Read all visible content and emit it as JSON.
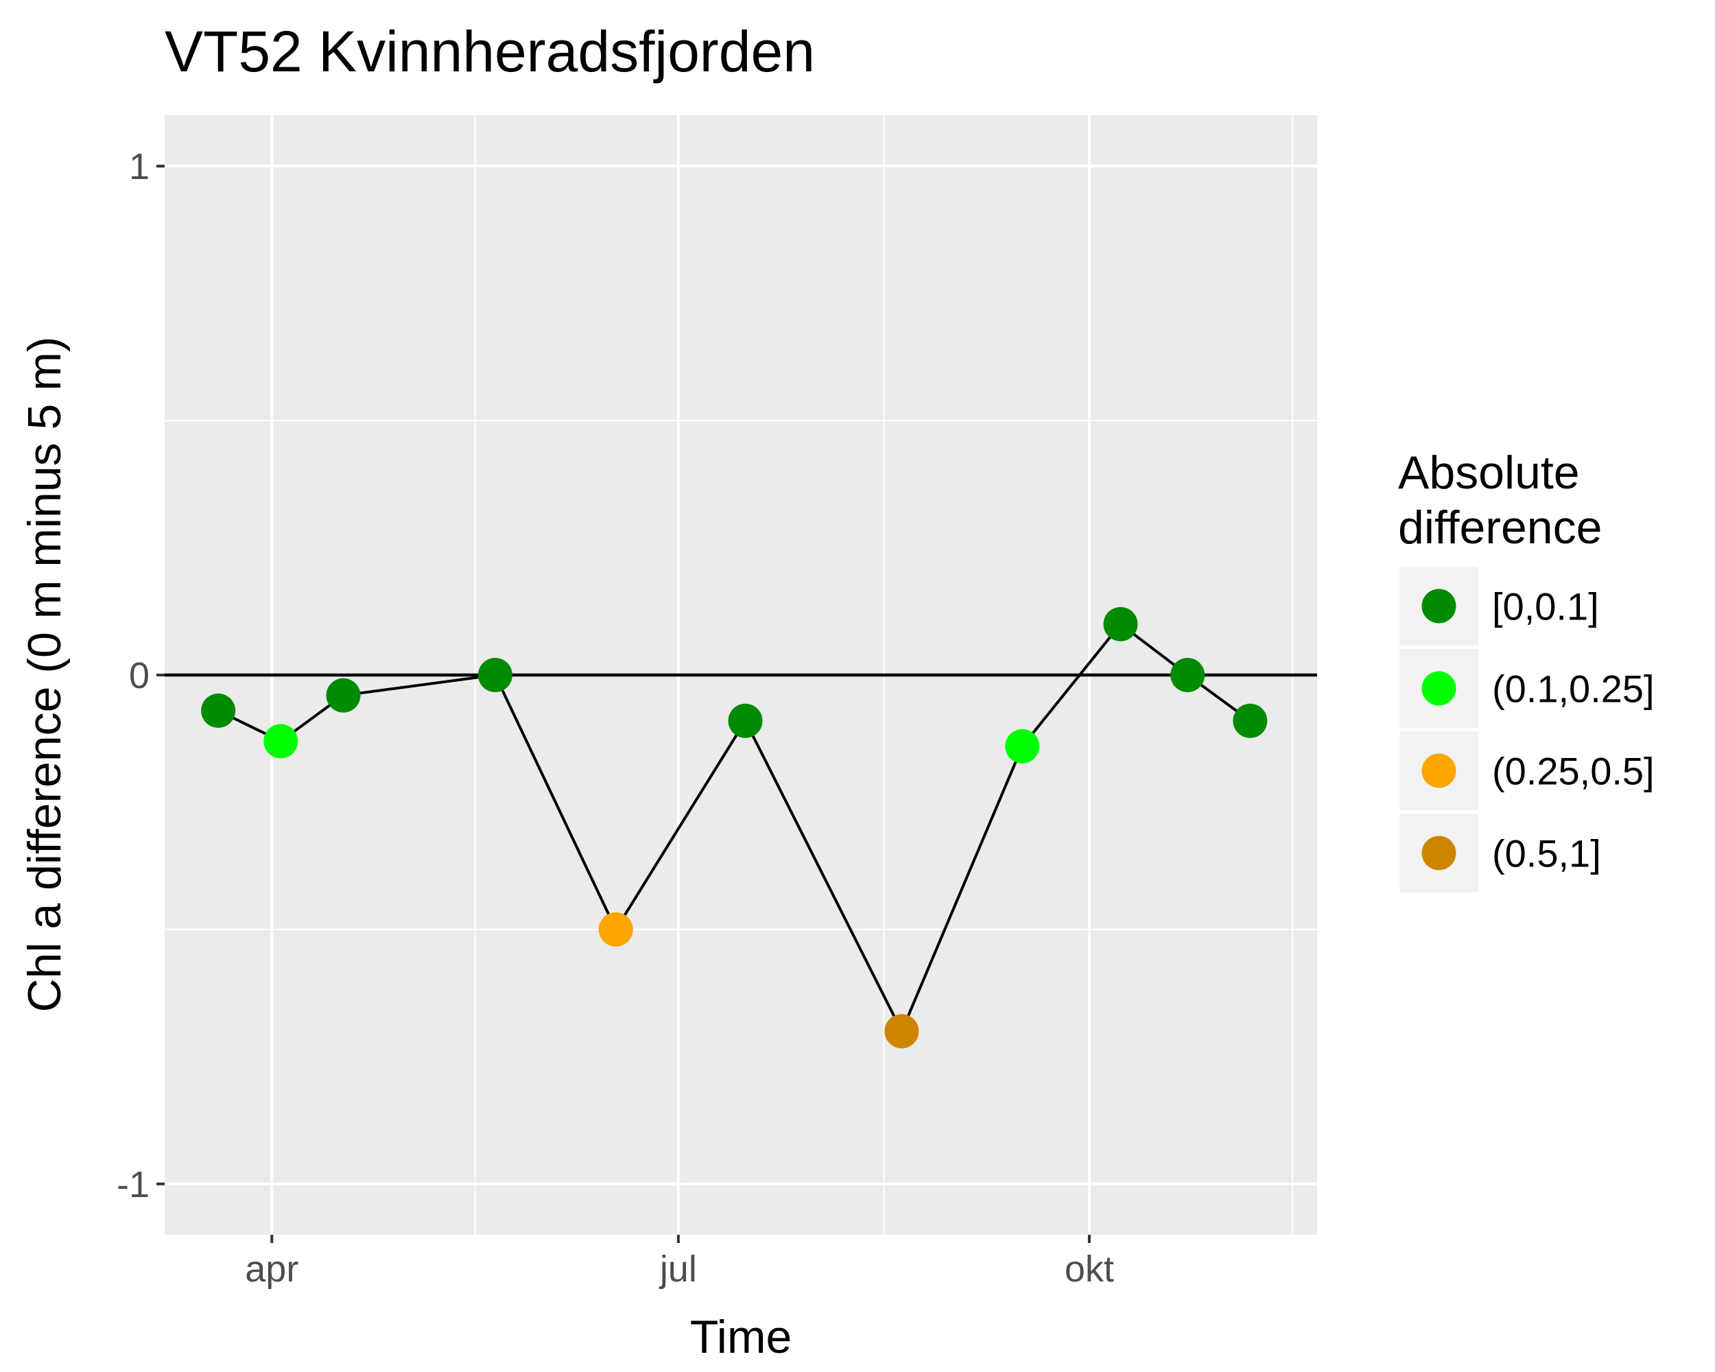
{
  "chart_data": {
    "type": "line",
    "title": "VT52 Kvinnheradsfjorden",
    "xlabel": "Time",
    "ylabel": "Chl a difference (0 m minus 5 m)",
    "ylim": [
      -1.1,
      1.1
    ],
    "y_ticks": [
      -1,
      0,
      1
    ],
    "y_tick_labels": [
      "-1",
      "0",
      "1"
    ],
    "x_ticks": [
      "2017-04-01",
      "2017-07-01",
      "2017-10-01"
    ],
    "x_tick_labels": [
      "apr",
      "jul",
      "okt"
    ],
    "xlim": [
      "2017-03-08",
      "2017-11-21"
    ],
    "grid": true,
    "reference_line_y": 0,
    "legend": {
      "title": [
        "Absolute",
        "difference"
      ],
      "position": "right",
      "entries": [
        {
          "label": "[0,0.1]",
          "color": "#008b00"
        },
        {
          "label": "(0.1,0.25]",
          "color": "#00ff00"
        },
        {
          "label": "(0.25,0.5]",
          "color": "#ffa500"
        },
        {
          "label": "(0.5,1]",
          "color": "#cd8500"
        }
      ]
    },
    "points": [
      {
        "x": "2017-03-20",
        "y": -0.07,
        "class": "[0,0.1]"
      },
      {
        "x": "2017-04-03",
        "y": -0.13,
        "class": "(0.1,0.25]"
      },
      {
        "x": "2017-04-17",
        "y": -0.04,
        "class": "[0,0.1]"
      },
      {
        "x": "2017-05-21",
        "y": 0.0,
        "class": "[0,0.1]"
      },
      {
        "x": "2017-06-17",
        "y": -0.5,
        "class": "(0.25,0.5]"
      },
      {
        "x": "2017-07-16",
        "y": -0.09,
        "class": "[0,0.1]"
      },
      {
        "x": "2017-08-20",
        "y": -0.7,
        "class": "(0.5,1]"
      },
      {
        "x": "2017-09-16",
        "y": -0.14,
        "class": "(0.1,0.25]"
      },
      {
        "x": "2017-10-08",
        "y": 0.1,
        "class": "[0,0.1]"
      },
      {
        "x": "2017-10-23",
        "y": 0.0,
        "class": "[0,0.1]"
      },
      {
        "x": "2017-11-06",
        "y": -0.09,
        "class": "[0,0.1]"
      }
    ]
  }
}
